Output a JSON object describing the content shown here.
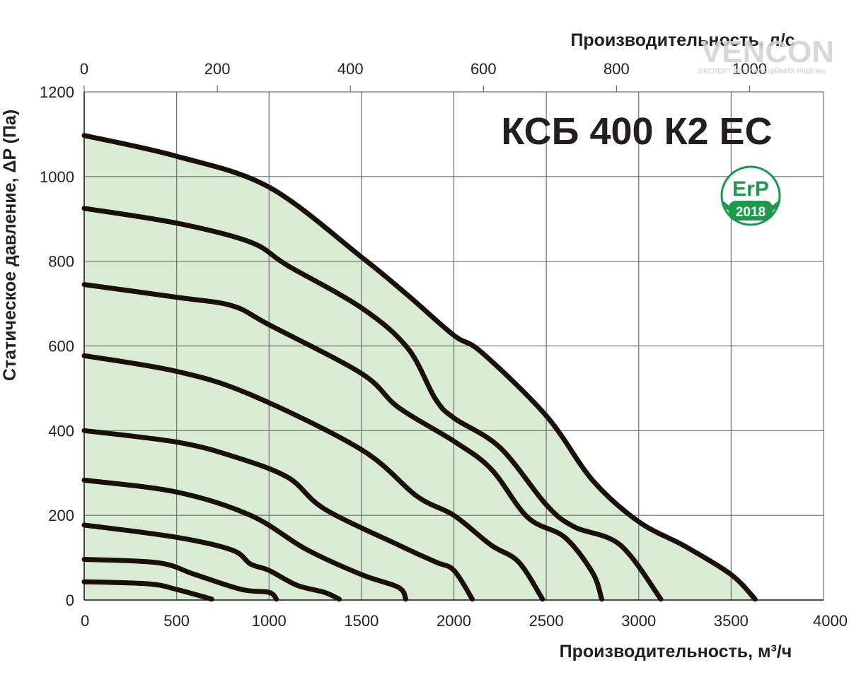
{
  "chart_data": {
    "type": "area",
    "title": "КСБ 400 К2 EC",
    "xlabel": "Производительность, м³/ч",
    "x2label": "Производительность, л/с",
    "ylabel": "Статическое давление, ΔP (Па)",
    "xlim": [
      0,
      4000
    ],
    "ylim": [
      0,
      1200
    ],
    "x2lim": [
      0,
      1111.1
    ],
    "x_ticks": [
      "0",
      "500",
      "1000",
      "1500",
      "2000",
      "2500",
      "3000",
      "3500",
      "4000"
    ],
    "x_tick_values": [
      0,
      500,
      1000,
      1500,
      2000,
      2500,
      3000,
      3500,
      4000
    ],
    "x2_ticks": [
      "0",
      "200",
      "400",
      "600",
      "800",
      "1000"
    ],
    "x2_tick_values": [
      0,
      200,
      400,
      600,
      800,
      1000
    ],
    "y_ticks": [
      "0",
      "200",
      "400",
      "600",
      "800",
      "1000",
      "1200"
    ],
    "y_tick_values": [
      0,
      200,
      400,
      600,
      800,
      1000,
      1200
    ],
    "grid": true,
    "fill_color": "#d9ebd3",
    "curve_color": "#1a0f0a",
    "series": [
      {
        "values": [
          [
            0,
            1097
          ],
          [
            500,
            1048
          ],
          [
            1000,
            975
          ],
          [
            1500,
            810
          ],
          [
            1750,
            720
          ],
          [
            2000,
            625
          ],
          [
            2150,
            585
          ],
          [
            2500,
            435
          ],
          [
            2750,
            283
          ],
          [
            3000,
            185
          ],
          [
            3250,
            127
          ],
          [
            3500,
            60
          ],
          [
            3630,
            2
          ]
        ]
      },
      {
        "values": [
          [
            0,
            925
          ],
          [
            500,
            890
          ],
          [
            900,
            845
          ],
          [
            1100,
            790
          ],
          [
            1500,
            690
          ],
          [
            1750,
            595
          ],
          [
            1900,
            475
          ],
          [
            2000,
            430
          ],
          [
            2250,
            360
          ],
          [
            2500,
            225
          ],
          [
            2650,
            173
          ],
          [
            2900,
            130
          ],
          [
            3120,
            2
          ]
        ]
      },
      {
        "values": [
          [
            0,
            745
          ],
          [
            500,
            715
          ],
          [
            800,
            695
          ],
          [
            1000,
            650
          ],
          [
            1500,
            535
          ],
          [
            1700,
            455
          ],
          [
            2000,
            375
          ],
          [
            2200,
            310
          ],
          [
            2400,
            195
          ],
          [
            2600,
            148
          ],
          [
            2750,
            65
          ],
          [
            2800,
            2
          ]
        ]
      },
      {
        "values": [
          [
            0,
            577
          ],
          [
            500,
            540
          ],
          [
            900,
            485
          ],
          [
            1500,
            355
          ],
          [
            1800,
            245
          ],
          [
            2000,
            200
          ],
          [
            2200,
            130
          ],
          [
            2350,
            90
          ],
          [
            2480,
            2
          ]
        ]
      },
      {
        "values": [
          [
            0,
            400
          ],
          [
            500,
            373
          ],
          [
            800,
            340
          ],
          [
            1100,
            290
          ],
          [
            1300,
            215
          ],
          [
            1700,
            130
          ],
          [
            1900,
            90
          ],
          [
            2000,
            70
          ],
          [
            2100,
            2
          ]
        ]
      },
      {
        "values": [
          [
            0,
            283
          ],
          [
            500,
            255
          ],
          [
            900,
            200
          ],
          [
            1200,
            120
          ],
          [
            1500,
            60
          ],
          [
            1700,
            30
          ],
          [
            1740,
            2
          ]
        ]
      },
      {
        "values": [
          [
            0,
            177
          ],
          [
            500,
            148
          ],
          [
            800,
            118
          ],
          [
            900,
            85
          ],
          [
            1000,
            70
          ],
          [
            1150,
            35
          ],
          [
            1300,
            18
          ],
          [
            1380,
            2
          ]
        ]
      },
      {
        "values": [
          [
            0,
            96
          ],
          [
            400,
            88
          ],
          [
            600,
            60
          ],
          [
            850,
            25
          ],
          [
            1000,
            18
          ],
          [
            1040,
            2
          ]
        ]
      },
      {
        "values": [
          [
            0,
            43
          ],
          [
            350,
            38
          ],
          [
            500,
            25
          ],
          [
            690,
            2
          ]
        ]
      }
    ],
    "badge": {
      "label": "ErP",
      "year": "2018",
      "color": "#1c9a4b"
    },
    "watermark": {
      "brand": "VENCON",
      "tagline": "ЕКСПЕРТ ВЕНТИЛЯЦІЙНИХ РІШЕНЬ"
    }
  }
}
